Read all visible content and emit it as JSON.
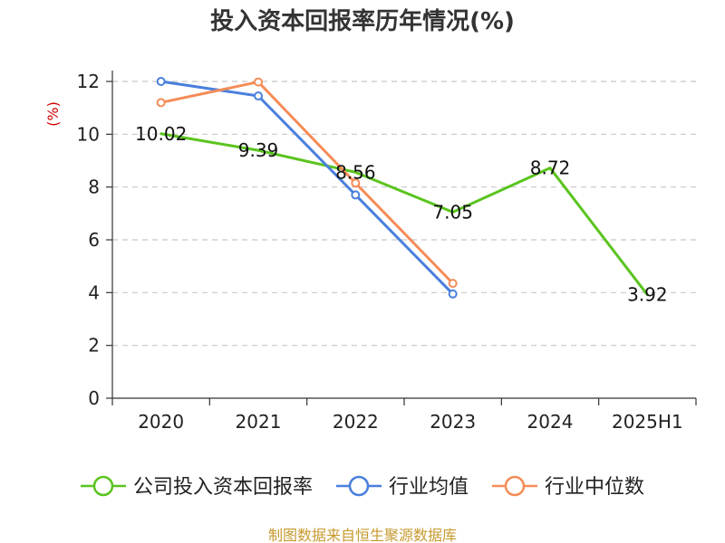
{
  "chart_data": {
    "type": "line",
    "title": "投入资本回报率历年情况(%)",
    "ylabel": "(%)",
    "xlabel": "",
    "categories": [
      "2020",
      "2021",
      "2022",
      "2023",
      "2024",
      "2025H1"
    ],
    "ylim": [
      0,
      12
    ],
    "yticks": [
      0,
      2,
      4,
      6,
      8,
      10,
      12
    ],
    "grid": true,
    "legend_position": "bottom",
    "series": [
      {
        "name": "公司投入资本回报率",
        "color": "#5ac41e",
        "values": [
          10.02,
          9.39,
          8.56,
          7.05,
          8.72,
          3.92
        ],
        "labels": [
          "10.02",
          "9.39",
          "8.56",
          "7.05",
          "8.72",
          "3.92"
        ],
        "show_labels": true,
        "show_markers": false
      },
      {
        "name": "行业均值",
        "color": "#4a7fdd",
        "values": [
          12.0,
          11.45,
          7.7,
          3.95,
          null,
          null
        ],
        "show_labels": false,
        "show_markers": true
      },
      {
        "name": "行业中位数",
        "color": "#f58c58",
        "values": [
          11.2,
          11.98,
          8.15,
          4.35,
          null,
          null
        ],
        "show_labels": false,
        "show_markers": true
      }
    ],
    "source_note": "制图数据来自恒生聚源数据库"
  }
}
